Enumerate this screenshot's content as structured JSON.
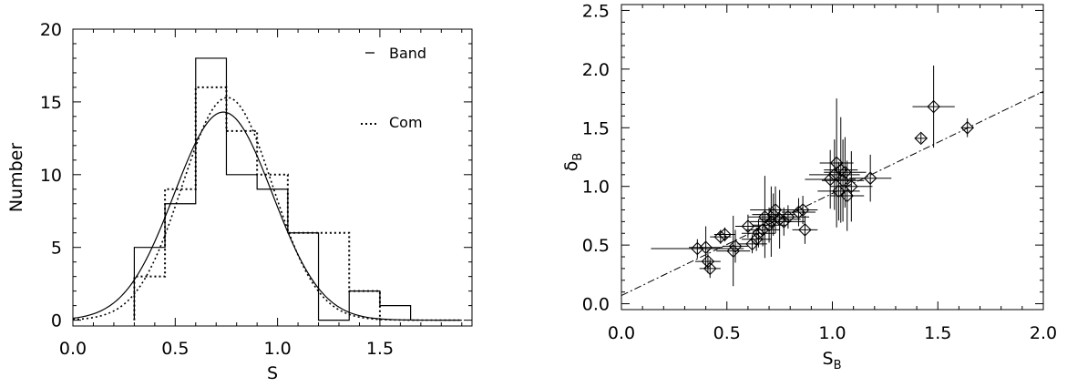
{
  "chart_data": [
    {
      "type": "histogram",
      "xlabel": "S",
      "ylabel": "Number",
      "xlim": [
        0.0,
        1.95
      ],
      "ylim": [
        -0.4,
        20.0
      ],
      "xticks": [
        "0.0",
        "0.5",
        "1.0",
        "1.5"
      ],
      "yticks": [
        "0",
        "5",
        "10",
        "15",
        "20"
      ],
      "legend_position": "top-right",
      "series": [
        {
          "name": "Band",
          "style": "solid",
          "bin_edges": [
            0.3,
            0.45,
            0.6,
            0.75,
            0.9,
            1.05,
            1.2,
            1.35,
            1.5,
            1.65
          ],
          "counts": [
            5,
            8,
            18,
            10,
            9,
            6,
            0,
            2,
            1
          ],
          "gaussian_fit": {
            "mean": 0.735,
            "sigma": 0.24,
            "peak": 14.3
          }
        },
        {
          "name": "Com",
          "style": "dotted",
          "bin_edges": [
            0.3,
            0.45,
            0.6,
            0.75,
            0.9,
            1.05,
            1.2,
            1.35,
            1.5
          ],
          "counts": [
            3,
            9,
            16,
            13,
            10,
            6,
            6,
            2
          ],
          "gaussian_fit": {
            "mean": 0.755,
            "sigma": 0.22,
            "peak": 15.3
          }
        }
      ]
    },
    {
      "type": "scatter",
      "xlabel": "S",
      "xlabel_subscript": "B",
      "ylabel": "δ",
      "ylabel_subscript": "B",
      "xlim": [
        0.0,
        2.0
      ],
      "ylim": [
        -0.05,
        2.55
      ],
      "xticks": [
        "0.0",
        "0.5",
        "1.0",
        "1.5",
        "2.0"
      ],
      "yticks": [
        "0.0",
        "0.5",
        "1.0",
        "1.5",
        "2.0",
        "2.5"
      ],
      "marker": "diamond",
      "fit_line": {
        "style": "dash-dot",
        "intercept": 0.07,
        "slope": 0.87
      },
      "points": [
        {
          "x": 0.36,
          "y": 0.47,
          "xerr": 0.22,
          "yerr": 0.08
        },
        {
          "x": 0.4,
          "y": 0.48,
          "xerr": 0.08,
          "yerr": 0.18
        },
        {
          "x": 0.41,
          "y": 0.36,
          "xerr": 0.06,
          "yerr": 0.1
        },
        {
          "x": 0.42,
          "y": 0.3,
          "xerr": 0.05,
          "yerr": 0.08
        },
        {
          "x": 0.47,
          "y": 0.57,
          "xerr": 0.05,
          "yerr": 0.06
        },
        {
          "x": 0.49,
          "y": 0.59,
          "xerr": 0.05,
          "yerr": 0.06
        },
        {
          "x": 0.53,
          "y": 0.45,
          "xerr": 0.08,
          "yerr": 0.3
        },
        {
          "x": 0.54,
          "y": 0.49,
          "xerr": 0.06,
          "yerr": 0.14
        },
        {
          "x": 0.6,
          "y": 0.66,
          "xerr": 0.06,
          "yerr": 0.1
        },
        {
          "x": 0.62,
          "y": 0.51,
          "xerr": 0.07,
          "yerr": 0.08
        },
        {
          "x": 0.64,
          "y": 0.55,
          "xerr": 0.07,
          "yerr": 0.1
        },
        {
          "x": 0.65,
          "y": 0.6,
          "xerr": 0.08,
          "yerr": 0.12
        },
        {
          "x": 0.67,
          "y": 0.63,
          "xerr": 0.08,
          "yerr": 0.14
        },
        {
          "x": 0.68,
          "y": 0.74,
          "xerr": 0.08,
          "yerr": 0.35
        },
        {
          "x": 0.7,
          "y": 0.67,
          "xerr": 0.08,
          "yerr": 0.15
        },
        {
          "x": 0.71,
          "y": 0.7,
          "xerr": 0.1,
          "yerr": 0.3
        },
        {
          "x": 0.72,
          "y": 0.76,
          "xerr": 0.1,
          "yerr": 0.18
        },
        {
          "x": 0.73,
          "y": 0.8,
          "xerr": 0.12,
          "yerr": 0.2
        },
        {
          "x": 0.75,
          "y": 0.72,
          "xerr": 0.1,
          "yerr": 0.25
        },
        {
          "x": 0.77,
          "y": 0.7,
          "xerr": 0.1,
          "yerr": 0.12
        },
        {
          "x": 0.79,
          "y": 0.74,
          "xerr": 0.1,
          "yerr": 0.1
        },
        {
          "x": 0.84,
          "y": 0.78,
          "xerr": 0.08,
          "yerr": 0.12
        },
        {
          "x": 0.86,
          "y": 0.8,
          "xerr": 0.07,
          "yerr": 0.12
        },
        {
          "x": 0.87,
          "y": 0.63,
          "xerr": 0.06,
          "yerr": 0.12
        },
        {
          "x": 0.99,
          "y": 1.06,
          "xerr": 0.12,
          "yerr": 0.25
        },
        {
          "x": 1.01,
          "y": 1.1,
          "xerr": 0.12,
          "yerr": 0.3
        },
        {
          "x": 1.02,
          "y": 1.2,
          "xerr": 0.08,
          "yerr": 0.55
        },
        {
          "x": 1.03,
          "y": 0.96,
          "xerr": 0.1,
          "yerr": 0.25
        },
        {
          "x": 1.04,
          "y": 1.14,
          "xerr": 0.08,
          "yerr": 0.45
        },
        {
          "x": 1.05,
          "y": 1.05,
          "xerr": 0.1,
          "yerr": 0.35
        },
        {
          "x": 1.06,
          "y": 1.12,
          "xerr": 0.1,
          "yerr": 0.3
        },
        {
          "x": 1.07,
          "y": 0.92,
          "xerr": 0.08,
          "yerr": 0.3
        },
        {
          "x": 1.09,
          "y": 1.0,
          "xerr": 0.1,
          "yerr": 0.3
        },
        {
          "x": 1.18,
          "y": 1.07,
          "xerr": 0.1,
          "yerr": 0.2
        },
        {
          "x": 1.42,
          "y": 1.41,
          "xerr": 0.03,
          "yerr": 0.04
        },
        {
          "x": 1.48,
          "y": 1.68,
          "xerr": 0.1,
          "yerr": 0.35
        },
        {
          "x": 1.64,
          "y": 1.5,
          "xerr": 0.03,
          "yerr": 0.08
        }
      ]
    }
  ]
}
